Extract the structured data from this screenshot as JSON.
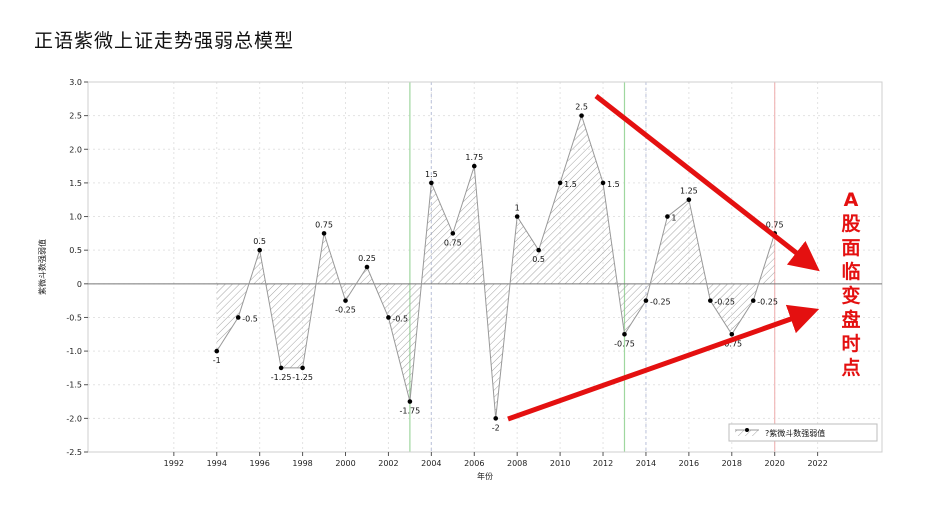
{
  "title": "正语紫微上证走势强弱总模型",
  "side_note": [
    "A",
    "股",
    "面",
    "临",
    "变",
    "盘",
    "时",
    "点"
  ],
  "colors": {
    "accent": "#e41010",
    "line": "#999999",
    "point": "#000000",
    "vline_green": "#9fd79f",
    "vline_blue": "#c5cbe0",
    "vline_red": "#f0b8b8"
  },
  "chart_data": {
    "type": "area",
    "xlabel": "年份",
    "ylabel": "紫微斗数强弱值",
    "xlim": [
      1988,
      2025
    ],
    "ylim": [
      -2.5,
      3.0
    ],
    "xticks": [
      1992,
      1994,
      1996,
      1998,
      2000,
      2002,
      2004,
      2006,
      2008,
      2010,
      2012,
      2014,
      2016,
      2018,
      2020,
      2022
    ],
    "yticks": [
      3.0,
      2.5,
      2.0,
      1.5,
      1.0,
      0.5,
      0,
      -0.5,
      -1.0,
      -1.5,
      -2.0,
      -2.5
    ],
    "ytick_labels": [
      "3.0",
      "2.5",
      "2.0",
      "1.5",
      "1.0",
      "0.5",
      "0",
      "-0.5",
      "-1.0",
      "-1.5",
      "-2.0",
      "-2.5"
    ],
    "grid": true,
    "legend_position": "bottom-right",
    "series": [
      {
        "name": "?紫微斗数强弱值",
        "x": [
          1994,
          1995,
          1996,
          1997,
          1998,
          1999,
          2000,
          2001,
          2002,
          2003,
          2004,
          2005,
          2006,
          2007,
          2008,
          2009,
          2010,
          2011,
          2012,
          2013,
          2014,
          2015,
          2016,
          2017,
          2018,
          2019,
          2020
        ],
        "y": [
          -1,
          -0.5,
          0.5,
          -1.25,
          -1.25,
          0.75,
          -0.25,
          0.25,
          -0.5,
          -1.75,
          1.5,
          0.75,
          1.75,
          -2,
          1,
          0.5,
          1.5,
          2.5,
          1.5,
          -0.75,
          -0.25,
          1,
          1.25,
          -0.25,
          -0.75,
          -0.25,
          0.75
        ],
        "labels": [
          "-1",
          "-0.5",
          "0.5",
          "-1.25",
          "-1.25",
          "0.75",
          "-0.25",
          "0.25",
          "-0.5",
          "-1.75",
          "1.5",
          "0.75",
          "1.75",
          "-2",
          "1",
          "0.5",
          "1.5",
          "2.5",
          "1.5",
          "-0.75",
          "-0.25",
          "1",
          "1.25",
          "-0.25",
          "-0.75",
          "-0.25",
          "0.75"
        ]
      }
    ],
    "highlight_years": [
      {
        "x": 2003,
        "color": "green"
      },
      {
        "x": 2004,
        "color": "blue"
      },
      {
        "x": 2013,
        "color": "green"
      },
      {
        "x": 2014,
        "color": "blue"
      },
      {
        "x": 2020,
        "color": "red"
      }
    ]
  }
}
